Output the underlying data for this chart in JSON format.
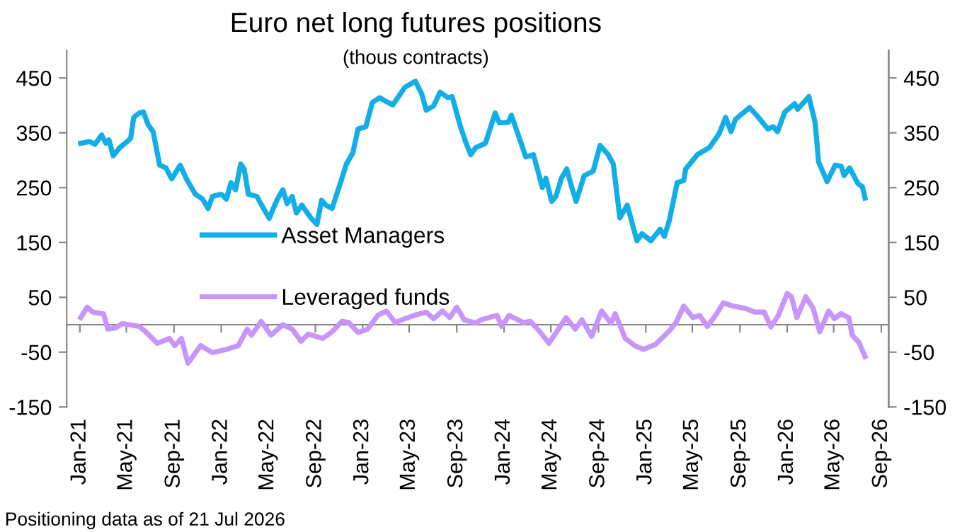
{
  "chart_data": {
    "type": "line",
    "title": "Euro net long futures positions",
    "subtitle": "(thous contracts)",
    "annotations": [
      "Positioning data as of 21 Jul 2026"
    ],
    "xlim": [
      "2020-11-28",
      "2026-09-20"
    ],
    "xticks": [
      {
        "value": "2021-01-01",
        "label": "Jan-21"
      },
      {
        "value": "2021-05-01",
        "label": "May-21"
      },
      {
        "value": "2021-09-01",
        "label": "Sep-21"
      },
      {
        "value": "2022-01-01",
        "label": "Jan-22"
      },
      {
        "value": "2022-05-01",
        "label": "May-22"
      },
      {
        "value": "2022-09-01",
        "label": "Sep-22"
      },
      {
        "value": "2023-01-01",
        "label": "Jan-23"
      },
      {
        "value": "2023-05-01",
        "label": "May-23"
      },
      {
        "value": "2023-09-01",
        "label": "Sep-23"
      },
      {
        "value": "2024-01-01",
        "label": "Jan-24"
      },
      {
        "value": "2024-05-01",
        "label": "May-24"
      },
      {
        "value": "2024-09-01",
        "label": "Sep-24"
      },
      {
        "value": "2025-01-01",
        "label": "Jan-25"
      },
      {
        "value": "2025-05-01",
        "label": "May-25"
      },
      {
        "value": "2025-09-01",
        "label": "Sep-25"
      },
      {
        "value": "2026-01-01",
        "label": "Jan-26"
      },
      {
        "value": "2026-05-01",
        "label": "May-26"
      },
      {
        "value": "2026-09-01",
        "label": "Sep-26"
      }
    ],
    "ylim": [
      -150,
      500
    ],
    "yticks": [
      -150,
      -50,
      50,
      150,
      250,
      350,
      450
    ],
    "y2lim": [
      -150,
      500
    ],
    "y2ticks": [
      -150,
      -50,
      50,
      150,
      250,
      350,
      450
    ],
    "grid": false,
    "legend": "center left",
    "marker": "none",
    "line_style": "solid",
    "series": [
      {
        "name": "Asset Managers",
        "color": "#12aee8",
        "x": [
          "2021-01-03",
          "2021-01-26",
          "2021-02-09",
          "2021-02-26",
          "2021-03-09",
          "2021-03-17",
          "2021-03-28",
          "2021-04-14",
          "2021-05-03",
          "2021-05-12",
          "2021-05-20",
          "2021-06-03",
          "2021-06-14",
          "2021-06-26",
          "2021-07-09",
          "2021-07-26",
          "2021-08-11",
          "2021-08-26",
          "2021-09-17",
          "2021-10-03",
          "2021-10-26",
          "2021-11-14",
          "2021-11-28",
          "2021-12-09",
          "2022-01-01",
          "2022-01-14",
          "2022-01-26",
          "2022-02-07",
          "2022-02-20",
          "2022-03-01",
          "2022-03-12",
          "2022-04-03",
          "2022-04-20",
          "2022-05-05",
          "2022-05-14",
          "2022-05-26",
          "2022-06-09",
          "2022-06-20",
          "2022-07-03",
          "2022-07-14",
          "2022-07-28",
          "2022-08-20",
          "2022-09-05",
          "2022-09-17",
          "2022-09-28",
          "2022-10-14",
          "2022-11-03",
          "2022-11-20",
          "2022-12-07",
          "2022-12-20",
          "2023-01-09",
          "2023-01-26",
          "2023-02-14",
          "2023-03-03",
          "2023-03-20",
          "2023-04-20",
          "2023-05-17",
          "2023-06-03",
          "2023-06-14",
          "2023-07-03",
          "2023-07-20",
          "2023-08-09",
          "2023-08-20",
          "2023-09-09",
          "2023-09-23",
          "2023-10-07",
          "2023-10-20",
          "2023-11-14",
          "2023-12-09",
          "2023-12-20",
          "2024-01-12",
          "2024-01-20",
          "2024-02-14",
          "2024-02-26",
          "2024-03-17",
          "2024-04-09",
          "2024-04-18",
          "2024-05-03",
          "2024-05-14",
          "2024-05-28",
          "2024-06-11",
          "2024-06-22",
          "2024-07-05",
          "2024-07-26",
          "2024-08-18",
          "2024-09-05",
          "2024-09-26",
          "2024-10-09",
          "2024-10-26",
          "2024-11-14",
          "2024-11-23",
          "2024-12-09",
          "2024-12-22",
          "2025-01-14",
          "2025-02-07",
          "2025-02-18",
          "2025-03-03",
          "2025-03-23",
          "2025-04-09",
          "2025-04-14",
          "2025-05-14",
          "2025-06-14",
          "2025-07-09",
          "2025-07-26",
          "2025-08-09",
          "2025-08-20",
          "2025-09-26",
          "2025-10-14",
          "2025-11-12",
          "2025-11-26",
          "2025-12-07",
          "2025-12-26",
          "2026-01-20",
          "2026-01-28",
          "2026-02-26",
          "2026-03-14",
          "2026-03-23",
          "2026-04-14",
          "2026-05-05",
          "2026-05-20",
          "2026-05-28",
          "2026-06-11",
          "2026-07-03",
          "2026-07-14",
          "2026-07-21"
        ],
        "values": [
          331,
          334,
          329,
          346,
          331,
          337,
          308,
          323,
          334,
          340,
          378,
          386,
          388,
          365,
          352,
          291,
          286,
          266,
          291,
          266,
          238,
          229,
          212,
          234,
          238,
          229,
          259,
          246,
          293,
          284,
          238,
          234,
          212,
          194,
          210,
          229,
          246,
          221,
          234,
          204,
          218,
          195,
          183,
          227,
          218,
          212,
          255,
          293,
          314,
          357,
          361,
          405,
          414,
          407,
          401,
          433,
          444,
          420,
          391,
          399,
          424,
          414,
          416,
          365,
          335,
          310,
          323,
          331,
          386,
          368,
          369,
          382,
          331,
          306,
          310,
          250,
          267,
          225,
          234,
          267,
          284,
          255,
          225,
          272,
          280,
          327,
          310,
          293,
          195,
          218,
          195,
          153,
          166,
          153,
          174,
          161,
          191,
          259,
          263,
          284,
          310,
          323,
          348,
          378,
          352,
          374,
          396,
          382,
          357,
          361,
          352,
          388,
          403,
          393,
          416,
          369,
          297,
          261,
          291,
          289,
          272,
          286,
          257,
          252,
          231
        ]
      },
      {
        "name": "Leveraged funds",
        "color": "#c896fa",
        "x": [
          "2021-01-03",
          "2021-01-20",
          "2021-02-03",
          "2021-03-03",
          "2021-03-14",
          "2021-04-03",
          "2021-04-20",
          "2021-05-09",
          "2021-06-03",
          "2021-06-20",
          "2021-07-20",
          "2021-08-20",
          "2021-09-03",
          "2021-09-20",
          "2021-10-07",
          "2021-11-09",
          "2021-12-09",
          "2022-01-14",
          "2022-02-14",
          "2022-03-09",
          "2022-03-20",
          "2022-04-14",
          "2022-05-09",
          "2022-06-09",
          "2022-07-03",
          "2022-07-26",
          "2022-08-14",
          "2022-09-20",
          "2022-10-14",
          "2022-11-09",
          "2022-11-26",
          "2022-12-20",
          "2023-01-14",
          "2023-02-09",
          "2023-03-03",
          "2023-03-26",
          "2023-04-20",
          "2023-05-14",
          "2023-06-14",
          "2023-07-03",
          "2023-07-26",
          "2023-08-14",
          "2023-09-01",
          "2023-09-20",
          "2023-10-20",
          "2023-11-03",
          "2023-12-14",
          "2023-12-26",
          "2024-01-14",
          "2024-02-20",
          "2024-03-09",
          "2024-04-03",
          "2024-04-26",
          "2024-06-09",
          "2024-07-03",
          "2024-07-20",
          "2024-08-14",
          "2024-09-09",
          "2024-10-03",
          "2024-10-14",
          "2024-11-09",
          "2024-12-03",
          "2024-12-26",
          "2025-01-26",
          "2025-03-03",
          "2025-03-20",
          "2025-04-09",
          "2025-05-03",
          "2025-05-20",
          "2025-06-09",
          "2025-07-03",
          "2025-07-20",
          "2025-08-14",
          "2025-09-14",
          "2025-10-09",
          "2025-11-03",
          "2025-11-20",
          "2025-12-09",
          "2026-01-01",
          "2026-01-12",
          "2026-01-26",
          "2026-02-18",
          "2026-03-09",
          "2026-03-26",
          "2026-04-18",
          "2026-05-03",
          "2026-05-20",
          "2026-06-09",
          "2026-06-18",
          "2026-07-05",
          "2026-07-21"
        ],
        "values": [
          13,
          32,
          23,
          20,
          -8,
          -6,
          2,
          0,
          -3,
          -13,
          -34,
          -25,
          -38,
          -25,
          -70,
          -38,
          -51,
          -45,
          -38,
          -8,
          -19,
          6,
          -19,
          0,
          -8,
          -30,
          -17,
          -25,
          -13,
          6,
          4,
          -14,
          -8,
          17,
          25,
          4,
          11,
          17,
          23,
          11,
          25,
          13,
          32,
          9,
          3,
          9,
          17,
          -3,
          17,
          4,
          6,
          -13,
          -34,
          13,
          -8,
          9,
          -21,
          25,
          3,
          20,
          -25,
          -38,
          -45,
          -36,
          -11,
          4,
          34,
          13,
          17,
          -3,
          20,
          40,
          34,
          30,
          23,
          23,
          -4,
          17,
          57,
          51,
          13,
          51,
          30,
          -13,
          25,
          11,
          20,
          13,
          -19,
          -32,
          -58
        ]
      }
    ]
  }
}
